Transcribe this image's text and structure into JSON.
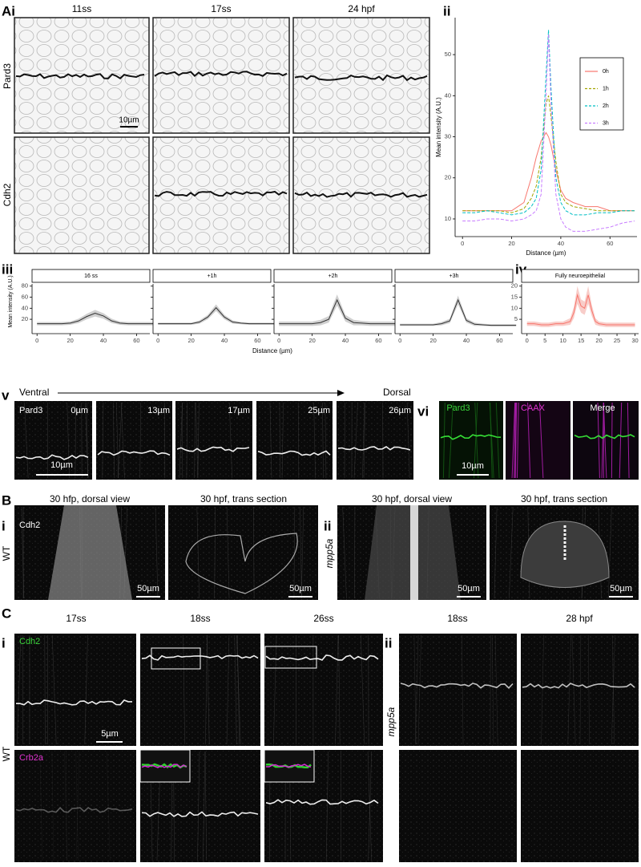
{
  "figure": {
    "labels": {
      "A": "Ai",
      "A_ii": "ii",
      "A_iii": "iii",
      "A_iv": "iv",
      "A_v": "v",
      "A_vi": "vi",
      "B": "B",
      "B_i": "i",
      "B_ii": "ii",
      "C": "C",
      "C_i": "i",
      "C_ii": "ii"
    },
    "panel_a": {
      "columns": [
        "11ss",
        "17ss",
        "24 hpf"
      ],
      "rows": [
        "Pard3",
        "Cdh2"
      ],
      "scale_bar": "10µm"
    },
    "panel_v": {
      "direction_start": "Ventral",
      "direction_end": "Dorsal",
      "marker": "Pard3",
      "depths": [
        "0µm",
        "13µm",
        "17µm",
        "25µm",
        "26µm"
      ],
      "scale_bar": "10µm"
    },
    "panel_vi": {
      "channels": [
        "Pard3",
        "CAAX",
        "Merge"
      ],
      "scale_bar": "10µm"
    },
    "panel_b": {
      "marker": "Cdh2",
      "genotypes": [
        "WT",
        "mpp5a"
      ],
      "columns": [
        "30 hfp, dorsal view",
        "30 hpf, trans section",
        "30 hpf, dorsal view",
        "30 hpf, trans section"
      ],
      "scale_bar": "50µm"
    },
    "panel_c": {
      "columns": [
        "17ss",
        "18ss",
        "26ss",
        "18ss",
        "28 hpf"
      ],
      "markers": [
        "Cdh2",
        "Crb2a"
      ],
      "genotypes": [
        "WT",
        "mpp5a"
      ],
      "scale_bar": "5µm"
    }
  },
  "chart_data": [
    {
      "type": "line",
      "xlabel": "Distance (µm)",
      "ylabel": "Mean intensity (A.U.)",
      "x": [
        0,
        5,
        10,
        15,
        20,
        25,
        28,
        30,
        32,
        34,
        35,
        36,
        38,
        40,
        42,
        45,
        50,
        55,
        60,
        65,
        70
      ],
      "series": [
        {
          "name": "0h",
          "color": "#f8766d",
          "linestyle": "solid",
          "values": [
            12,
            12,
            12,
            12,
            12,
            14,
            20,
            25,
            29,
            31,
            30,
            28,
            22,
            17,
            15,
            14,
            13,
            13,
            12,
            12,
            12
          ]
        },
        {
          "name": "1h",
          "color": "#a3a500",
          "linestyle": "dashed",
          "values": [
            12,
            12,
            12,
            12,
            11.5,
            12.5,
            15,
            18,
            25,
            38,
            40,
            35,
            24,
            16,
            14,
            13,
            12.5,
            12,
            12,
            12,
            12
          ]
        },
        {
          "name": "2h",
          "color": "#00bfc4",
          "linestyle": "dashed",
          "values": [
            11.5,
            11.5,
            12,
            11.5,
            11,
            11.5,
            13,
            15,
            22,
            45,
            56,
            42,
            20,
            14,
            12,
            11,
            11,
            11.5,
            11.5,
            12,
            12
          ]
        },
        {
          "name": "3h",
          "color": "#c77cff",
          "linestyle": "dashed",
          "values": [
            9.5,
            9.5,
            10,
            10,
            9.5,
            10,
            11,
            12,
            16,
            40,
            55,
            38,
            16,
            10,
            8,
            7,
            7,
            7.5,
            8,
            9,
            9.5
          ]
        }
      ],
      "xlim": [
        -3,
        71
      ],
      "ylim": [
        5.7,
        59
      ],
      "xticks": [
        0,
        20,
        40,
        60
      ],
      "yticks": [
        10,
        20,
        30,
        40,
        50
      ],
      "legend": "top-right"
    },
    {
      "type": "facet_line",
      "xlabel": "Distance (µm)",
      "ylabel": "Mean intensity (A.U.)",
      "x": [
        0,
        5,
        10,
        15,
        20,
        25,
        30,
        35,
        40,
        45,
        50,
        55,
        60,
        65,
        70
      ],
      "color": "#333333",
      "band_color": "#c4c4c4",
      "facets": [
        {
          "title": "16 ss",
          "values": [
            12,
            12,
            12,
            12,
            13,
            17,
            25,
            31,
            26,
            17,
            13,
            12,
            12,
            12,
            12
          ],
          "errors": [
            3,
            3,
            3,
            3,
            3,
            4,
            5,
            6,
            5,
            4,
            3,
            3,
            3,
            3,
            3
          ]
        },
        {
          "title": "+1h",
          "values": [
            12,
            12,
            12,
            12,
            12,
            15,
            24,
            41,
            24,
            15,
            13,
            12,
            12,
            12,
            12
          ],
          "errors": [
            2,
            2,
            2,
            2,
            2,
            3,
            4,
            6,
            4,
            3,
            2,
            2,
            2,
            2,
            2
          ]
        },
        {
          "title": "+2h",
          "values": [
            12,
            12,
            12,
            12,
            12,
            14,
            20,
            55,
            22,
            14,
            13,
            12,
            12,
            12,
            12
          ],
          "errors": [
            4,
            4,
            4,
            4,
            4,
            5,
            6,
            10,
            6,
            5,
            4,
            4,
            4,
            4,
            4
          ]
        },
        {
          "title": "+3h",
          "values": [
            10,
            10,
            10,
            10,
            10,
            12,
            17,
            55,
            18,
            11,
            10,
            9,
            9,
            9,
            9
          ],
          "errors": [
            2,
            2,
            2,
            2,
            2,
            3,
            4,
            8,
            4,
            3,
            2,
            2,
            2,
            2,
            2
          ]
        }
      ],
      "xlim": [
        -3,
        68
      ],
      "ylim": [
        -6,
        84
      ],
      "xticks": [
        0,
        20,
        40,
        60
      ],
      "yticks": [
        20,
        40,
        60,
        80
      ]
    },
    {
      "type": "line_band",
      "title": "Fully neuroepithelial",
      "x": [
        0,
        2,
        4,
        6,
        8,
        10,
        12,
        13,
        14,
        15,
        16,
        17,
        18,
        19,
        20,
        22,
        24,
        26,
        28,
        30
      ],
      "values": [
        3,
        3,
        2.5,
        2.5,
        3,
        3,
        4,
        8,
        16,
        11,
        10,
        16,
        9,
        4,
        3,
        2.5,
        2.5,
        2.5,
        2.5,
        2.5
      ],
      "errors": [
        1,
        1,
        1,
        1,
        1,
        1,
        1.5,
        2.5,
        4,
        3,
        3,
        4,
        2.5,
        1.5,
        1,
        1,
        1,
        1,
        1,
        1
      ],
      "color": "#f8766d",
      "band_color": "#f6c1bb",
      "xlim": [
        -1.5,
        31
      ],
      "ylim": [
        -1.5,
        21
      ],
      "xticks": [
        0,
        5,
        10,
        15,
        20,
        25,
        30
      ],
      "yticks": [
        5,
        10,
        15,
        20
      ]
    }
  ]
}
